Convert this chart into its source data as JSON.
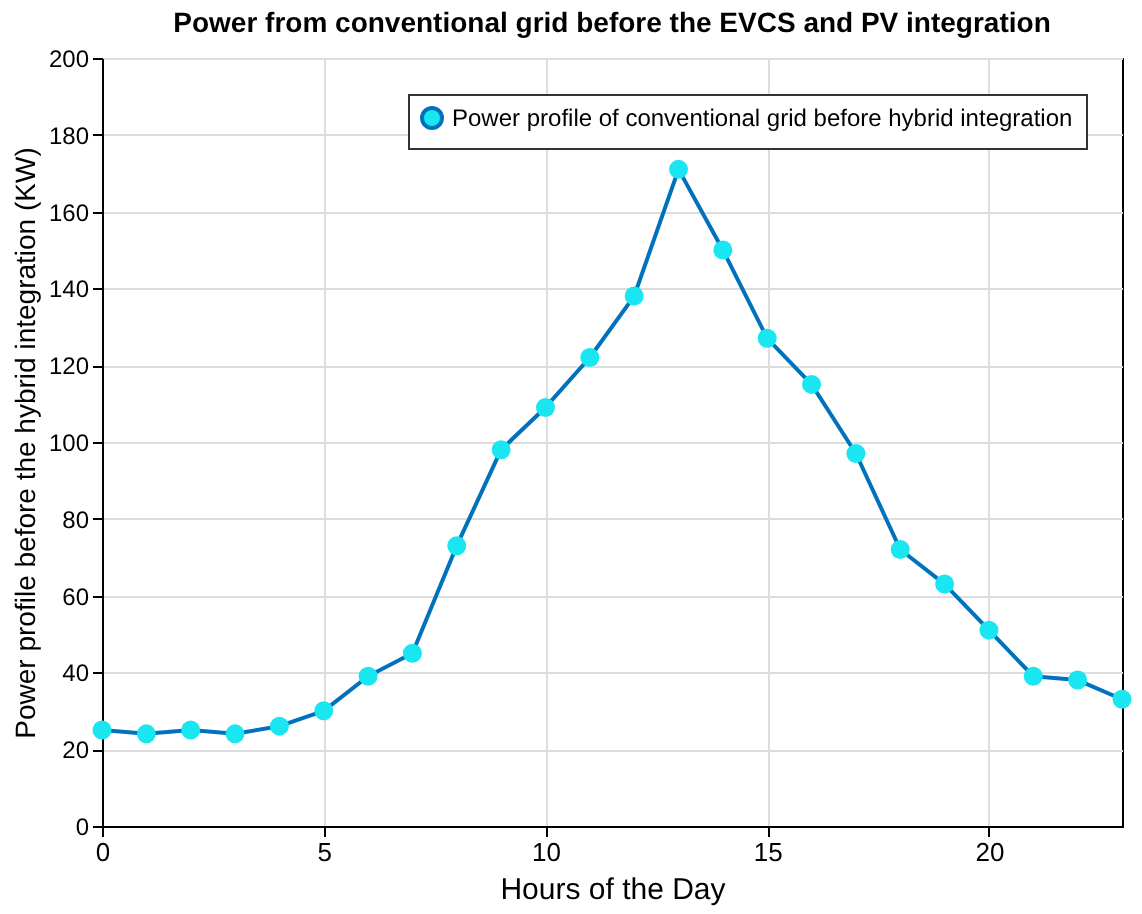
{
  "chart_data": {
    "type": "line",
    "title": "Power from conventional grid before the EVCS and PV integration",
    "xlabel": "Hours of the Day",
    "ylabel": "Power profile before the hybrid integration (KW)",
    "x": [
      0,
      1,
      2,
      3,
      4,
      5,
      6,
      7,
      8,
      9,
      10,
      11,
      12,
      13,
      14,
      15,
      16,
      17,
      18,
      19,
      20,
      21,
      22,
      23
    ],
    "series": [
      {
        "name": "Power profile of conventional grid before hybrid integration",
        "color": "#0072bd",
        "values": [
          25,
          24,
          25,
          24,
          26,
          30,
          39,
          45,
          73,
          98,
          109,
          122,
          138,
          171,
          150,
          127,
          115,
          97,
          72,
          63,
          51,
          39,
          38,
          33
        ]
      }
    ],
    "xlim": [
      0,
      23
    ],
    "xticks": [
      0,
      5,
      10,
      15,
      20
    ],
    "ylim": [
      0,
      200
    ],
    "yticks": [
      0,
      20,
      40,
      60,
      80,
      100,
      120,
      140,
      160,
      180,
      200
    ],
    "grid": true,
    "legend": "top right",
    "marker": "circle",
    "line_style": "solid"
  }
}
